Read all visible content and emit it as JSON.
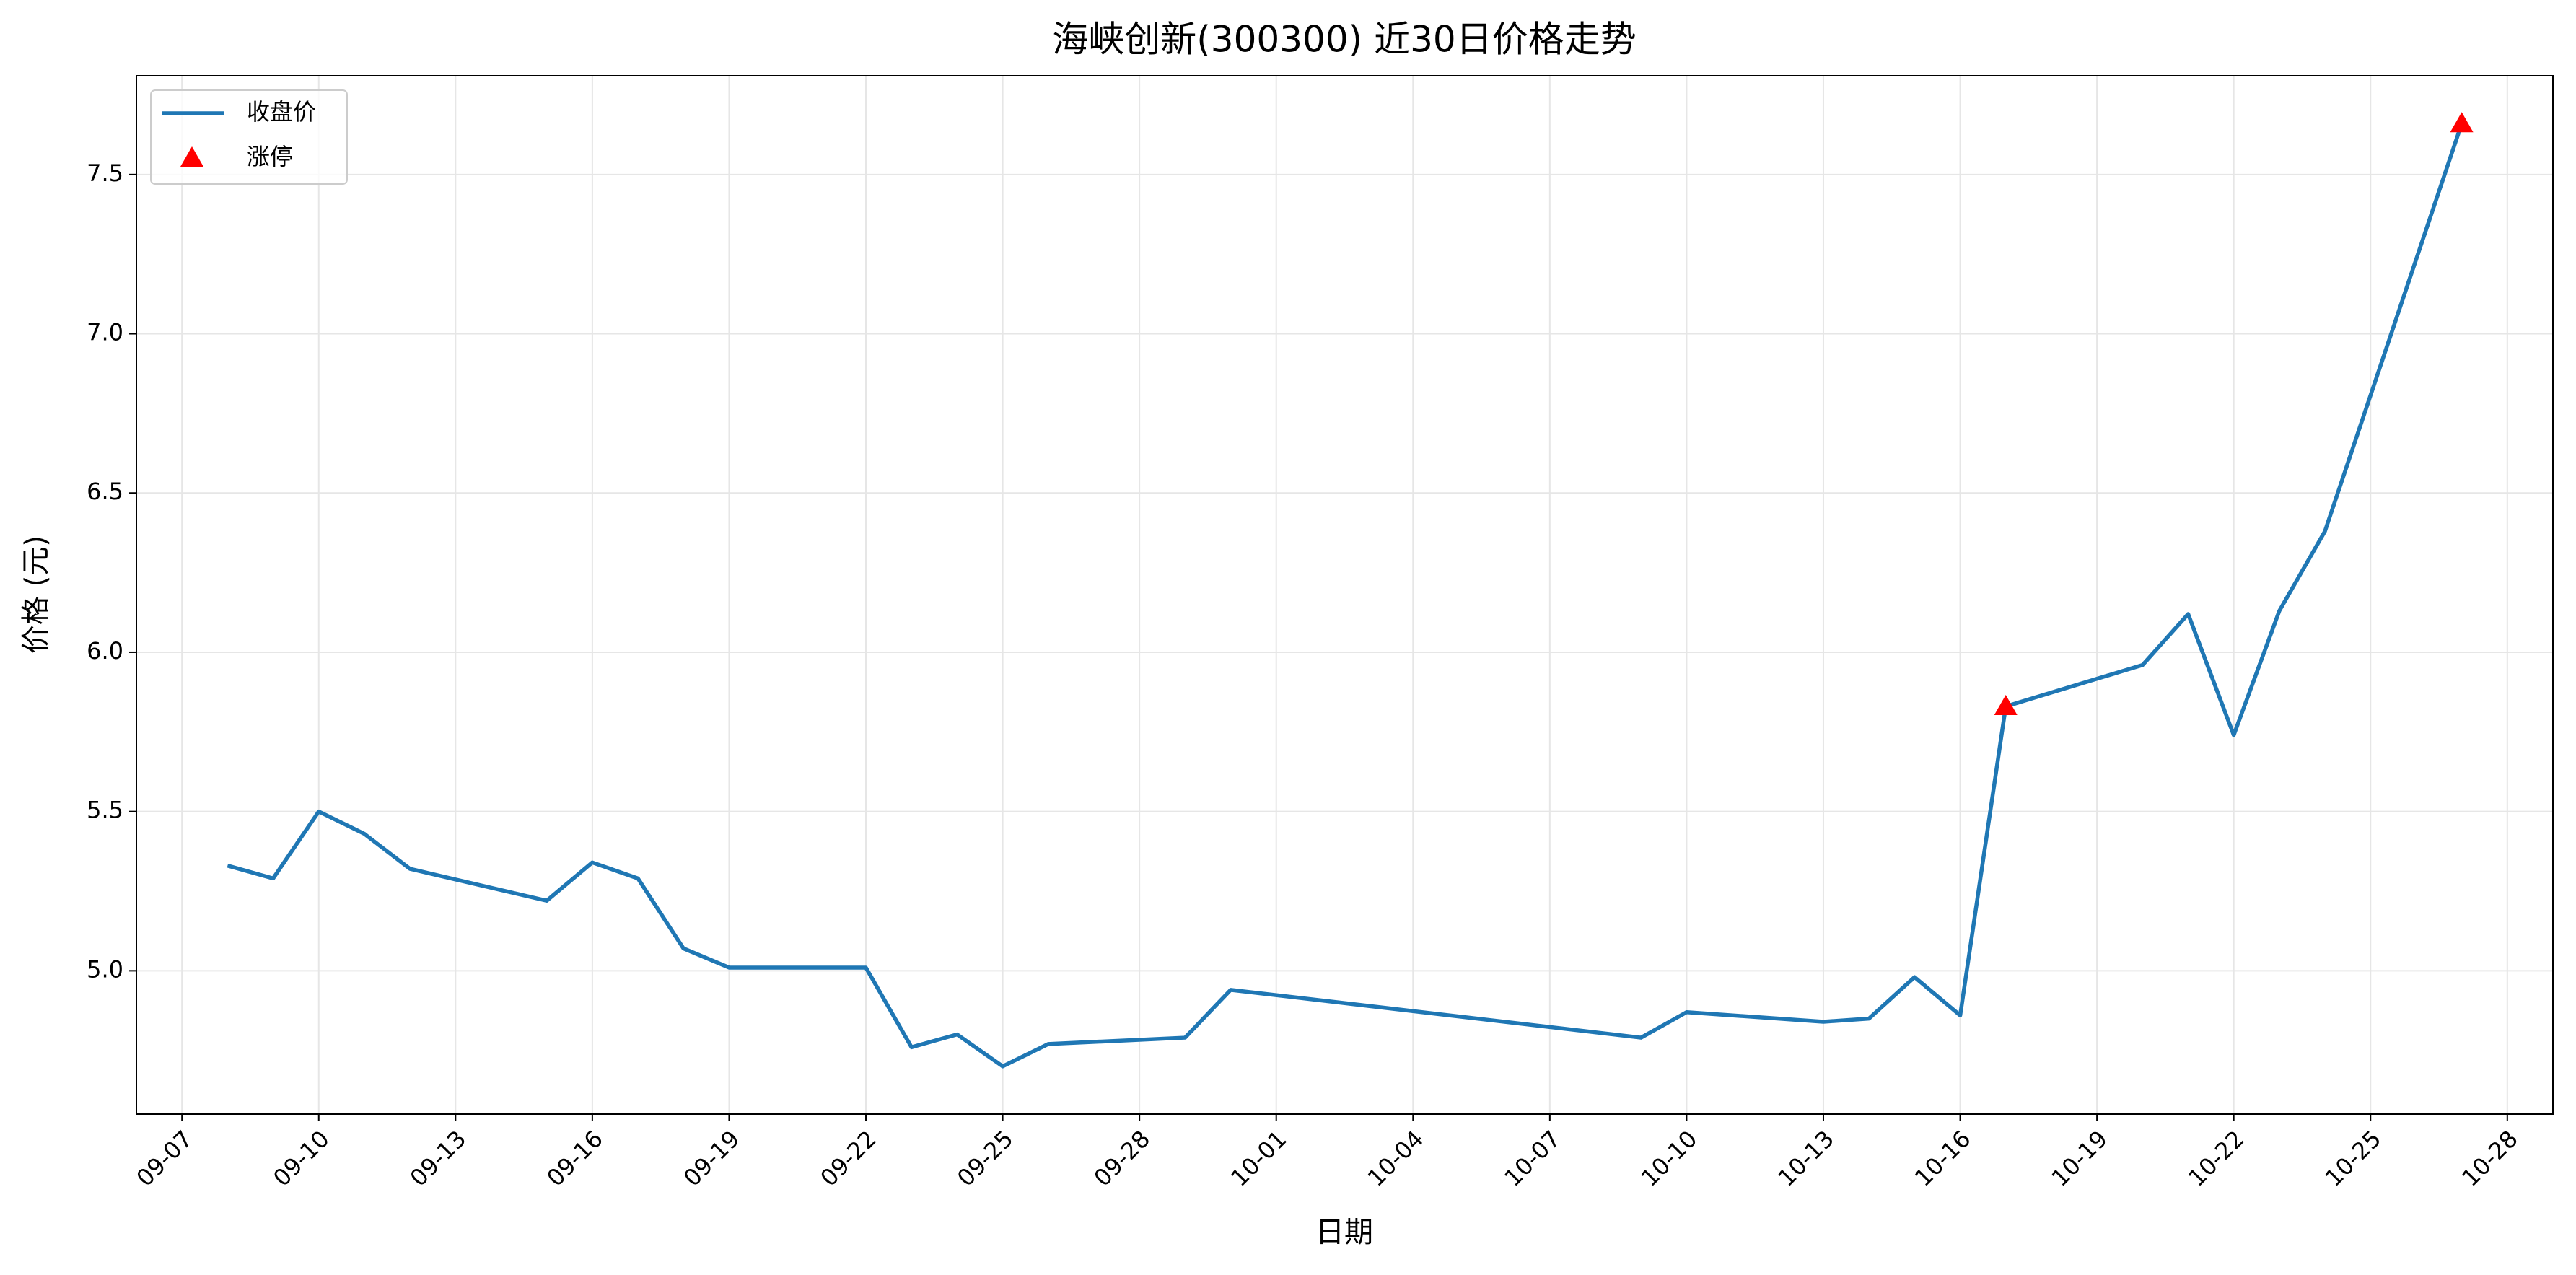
{
  "chart_data": {
    "type": "line",
    "title": "海峡创新(300300) 近30日价格走势",
    "xlabel": "日期",
    "ylabel": "价格 (元)",
    "x": [
      "09-08",
      "09-09",
      "09-10",
      "09-11",
      "09-12",
      "09-15",
      "09-16",
      "09-17",
      "09-18",
      "09-19",
      "09-22",
      "09-23",
      "09-24",
      "09-25",
      "09-26",
      "09-29",
      "09-30",
      "10-09",
      "10-10",
      "10-13",
      "10-14",
      "10-15",
      "10-16",
      "10-17",
      "10-20",
      "10-21",
      "10-22",
      "10-23",
      "10-24",
      "10-27"
    ],
    "series": [
      {
        "name": "收盘价",
        "color": "#1f77b4",
        "values": [
          5.33,
          5.29,
          5.5,
          5.43,
          5.32,
          5.22,
          5.34,
          5.29,
          5.07,
          5.01,
          5.01,
          4.76,
          4.8,
          4.7,
          4.77,
          4.79,
          4.94,
          4.79,
          4.87,
          4.84,
          4.85,
          4.98,
          4.86,
          5.83,
          5.96,
          6.12,
          5.74,
          6.13,
          6.38,
          7.66
        ]
      },
      {
        "name": "涨停",
        "type": "scatter",
        "marker": "triangle",
        "color": "#ff0000",
        "x": [
          "10-17",
          "10-27"
        ],
        "values": [
          5.83,
          7.66
        ]
      }
    ],
    "xlim": [
      "09-06",
      "10-29"
    ],
    "xticks": [
      "09-07",
      "09-10",
      "09-13",
      "09-16",
      "09-19",
      "09-22",
      "09-25",
      "09-28",
      "10-01",
      "10-04",
      "10-07",
      "10-10",
      "10-13",
      "10-16",
      "10-19",
      "10-22",
      "10-25",
      "10-28"
    ],
    "ylim": [
      4.55,
      7.81
    ],
    "yticks": [
      {
        "value": 5,
        "label": "5.0"
      },
      5.5,
      {
        "value": 6,
        "label": "6.0"
      },
      6.5,
      {
        "value": 7,
        "label": "7.0"
      },
      7.5
    ],
    "grid": true,
    "legend": "upper left"
  }
}
